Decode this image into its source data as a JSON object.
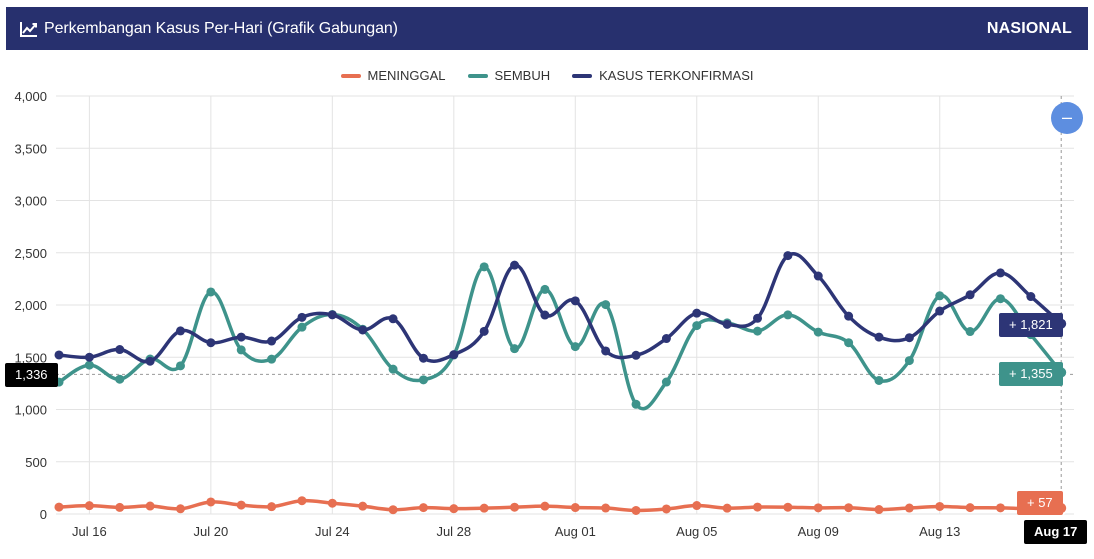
{
  "header": {
    "title": "Perkembangan Kasus Per-Hari (Grafik Gabungan)",
    "scope": "NASIONAL",
    "icon": "line-chart-icon"
  },
  "zoom": {
    "icon": "minus-icon",
    "label": "–"
  },
  "crosshair": {
    "y_label": "1,336",
    "x_label": "Aug 17"
  },
  "tooltips": {
    "confirmed": "+ 1,821",
    "recovered": "+ 1,355",
    "deaths": "+ 57"
  },
  "colors": {
    "header_bg": "#27306e",
    "deaths": "#e76f51",
    "recovered": "#3e938b",
    "confirmed": "#2d3576",
    "zoom": "#5d8ee0"
  },
  "chart_data": {
    "type": "line",
    "ylim": [
      0,
      4000
    ],
    "yticks": [
      0,
      500,
      1000,
      1500,
      2000,
      2500,
      3000,
      3500,
      4000
    ],
    "ytick_labels": [
      "0",
      "500",
      "1,000",
      "1,500",
      "2,000",
      "2,500",
      "3,000",
      "3,500",
      "4,000"
    ],
    "xtick_labels": [
      "Jul 16",
      "Jul 20",
      "Jul 24",
      "Jul 28",
      "Aug 01",
      "Aug 05",
      "Aug 09",
      "Aug 13",
      "Aug 17"
    ],
    "x_dates": [
      "2020-07-15",
      "2020-07-16",
      "2020-07-17",
      "2020-07-18",
      "2020-07-19",
      "2020-07-20",
      "2020-07-21",
      "2020-07-22",
      "2020-07-23",
      "2020-07-24",
      "2020-07-25",
      "2020-07-26",
      "2020-07-27",
      "2020-07-28",
      "2020-07-29",
      "2020-07-30",
      "2020-07-31",
      "2020-08-01",
      "2020-08-02",
      "2020-08-03",
      "2020-08-04",
      "2020-08-05",
      "2020-08-06",
      "2020-08-07",
      "2020-08-08",
      "2020-08-09",
      "2020-08-10",
      "2020-08-11",
      "2020-08-12",
      "2020-08-13",
      "2020-08-14",
      "2020-08-15",
      "2020-08-16",
      "2020-08-17"
    ],
    "legend_position": "top-center",
    "grid": true,
    "series": [
      {
        "name": "MENINGGAL",
        "color": "#e76f51",
        "values": [
          66,
          80,
          63,
          76,
          50,
          115,
          85,
          70,
          127,
          103,
          75,
          41,
          61,
          51,
          56,
          65,
          75,
          62,
          57,
          34,
          48,
          81,
          56,
          66,
          65,
          59,
          60,
          43,
          57,
          72,
          61,
          59,
          50,
          57
        ]
      },
      {
        "name": "SEMBUH",
        "color": "#3e938b",
        "values": [
          1262,
          1425,
          1290,
          1483,
          1418,
          2125,
          1570,
          1482,
          1788,
          1909,
          1768,
          1386,
          1284,
          1521,
          2365,
          1582,
          2149,
          1602,
          2004,
          1050,
          1263,
          1803,
          1829,
          1750,
          1905,
          1741,
          1639,
          1278,
          1468,
          2088,
          1746,
          2060,
          1716,
          1355
        ]
      },
      {
        "name": "KASUS TERKONFIRMASI",
        "color": "#2d3576",
        "values": [
          1522,
          1500,
          1574,
          1462,
          1752,
          1639,
          1693,
          1655,
          1882,
          1906,
          1761,
          1868,
          1491,
          1525,
          1748,
          2381,
          1904,
          2040,
          1560,
          1519,
          1679,
          1922,
          1815,
          1873,
          2473,
          2277,
          1893,
          1693,
          1687,
          1942,
          2098,
          2307,
          2081,
          1821
        ]
      }
    ]
  }
}
